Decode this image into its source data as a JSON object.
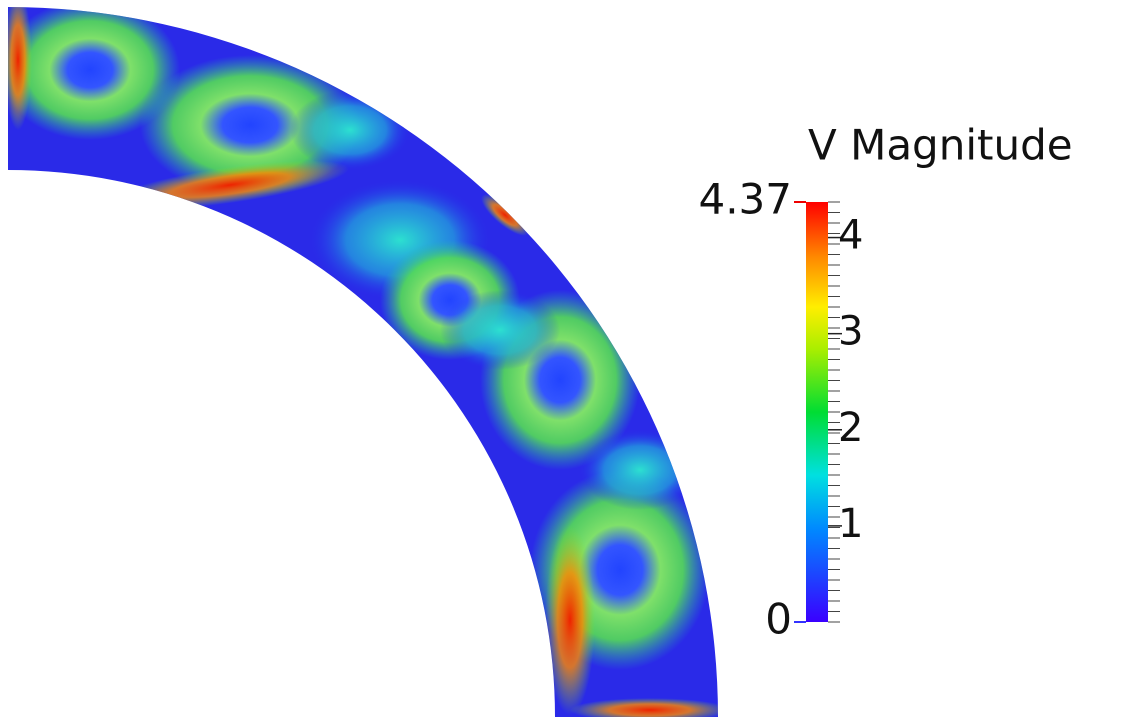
{
  "colorbar": {
    "title": "V Magnitude",
    "range": [
      0,
      4.37
    ],
    "ticks": [
      1,
      2,
      3,
      4
    ]
  }
}
